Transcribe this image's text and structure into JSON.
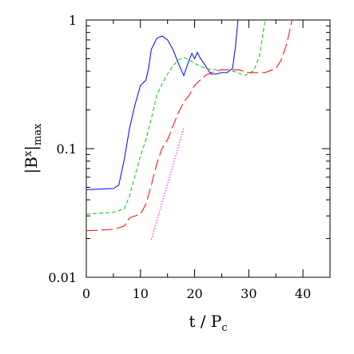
{
  "chart_data": {
    "type": "line",
    "xlabel": [
      "t / P",
      "c"
    ],
    "ylabel": [
      "|B",
      "x",
      "|",
      "max"
    ],
    "xlim": [
      0,
      45
    ],
    "xticks": [
      0,
      10,
      20,
      30,
      40
    ],
    "xminorticks": [
      5,
      15,
      25,
      35
    ],
    "ylim": [
      0.01,
      1
    ],
    "yticks": [
      0.01,
      0.1,
      1
    ],
    "ylog": true,
    "yminorticks": [
      0.02,
      0.03,
      0.04,
      0.05,
      0.06,
      0.07,
      0.08,
      0.09,
      0.2,
      0.3,
      0.4,
      0.5,
      0.6,
      0.7,
      0.8,
      0.9
    ],
    "series": [
      {
        "color": "#0000ff",
        "linestyle": "solid",
        "x": [
          0,
          5,
          6,
          7,
          8,
          9,
          10,
          11,
          11.5,
          12,
          13,
          14,
          15,
          16,
          17,
          18,
          19,
          19.5,
          20,
          20.5,
          21,
          22,
          23,
          24,
          25,
          26,
          27,
          27.5,
          28
        ],
        "values": [
          0.048,
          0.049,
          0.052,
          0.082,
          0.145,
          0.22,
          0.31,
          0.34,
          0.42,
          0.59,
          0.72,
          0.75,
          0.7,
          0.59,
          0.46,
          0.37,
          0.49,
          0.55,
          0.5,
          0.56,
          0.51,
          0.44,
          0.38,
          0.38,
          0.39,
          0.39,
          0.42,
          0.6,
          1.0
        ]
      },
      {
        "color": "#00cc00",
        "linestyle": "dashed",
        "x": [
          0,
          5,
          7,
          8,
          9,
          10,
          11,
          12,
          13,
          14,
          15,
          16,
          17,
          18,
          19,
          20,
          22,
          24,
          26,
          28,
          29,
          30,
          31,
          32,
          33
        ],
        "values": [
          0.031,
          0.032,
          0.034,
          0.043,
          0.062,
          0.088,
          0.117,
          0.17,
          0.26,
          0.32,
          0.38,
          0.44,
          0.49,
          0.51,
          0.49,
          0.46,
          0.42,
          0.41,
          0.41,
          0.39,
          0.37,
          0.38,
          0.41,
          0.53,
          1.0
        ]
      },
      {
        "color": "#ff0000",
        "linestyle": "long-dashed",
        "x": [
          0,
          5,
          7,
          8,
          10,
          11,
          12,
          13,
          14,
          15,
          16,
          17,
          18,
          19,
          20,
          21,
          22,
          23,
          25,
          28,
          30,
          33,
          35,
          36,
          37,
          38
        ],
        "values": [
          0.023,
          0.0236,
          0.025,
          0.029,
          0.031,
          0.037,
          0.052,
          0.076,
          0.101,
          0.117,
          0.15,
          0.19,
          0.23,
          0.26,
          0.31,
          0.34,
          0.37,
          0.39,
          0.41,
          0.41,
          0.39,
          0.39,
          0.42,
          0.49,
          0.65,
          1.0
        ]
      },
      {
        "color": "#ff00ff",
        "linestyle": "dotted",
        "x": [
          12,
          18
        ],
        "values": [
          0.0196,
          0.145
        ]
      }
    ]
  }
}
